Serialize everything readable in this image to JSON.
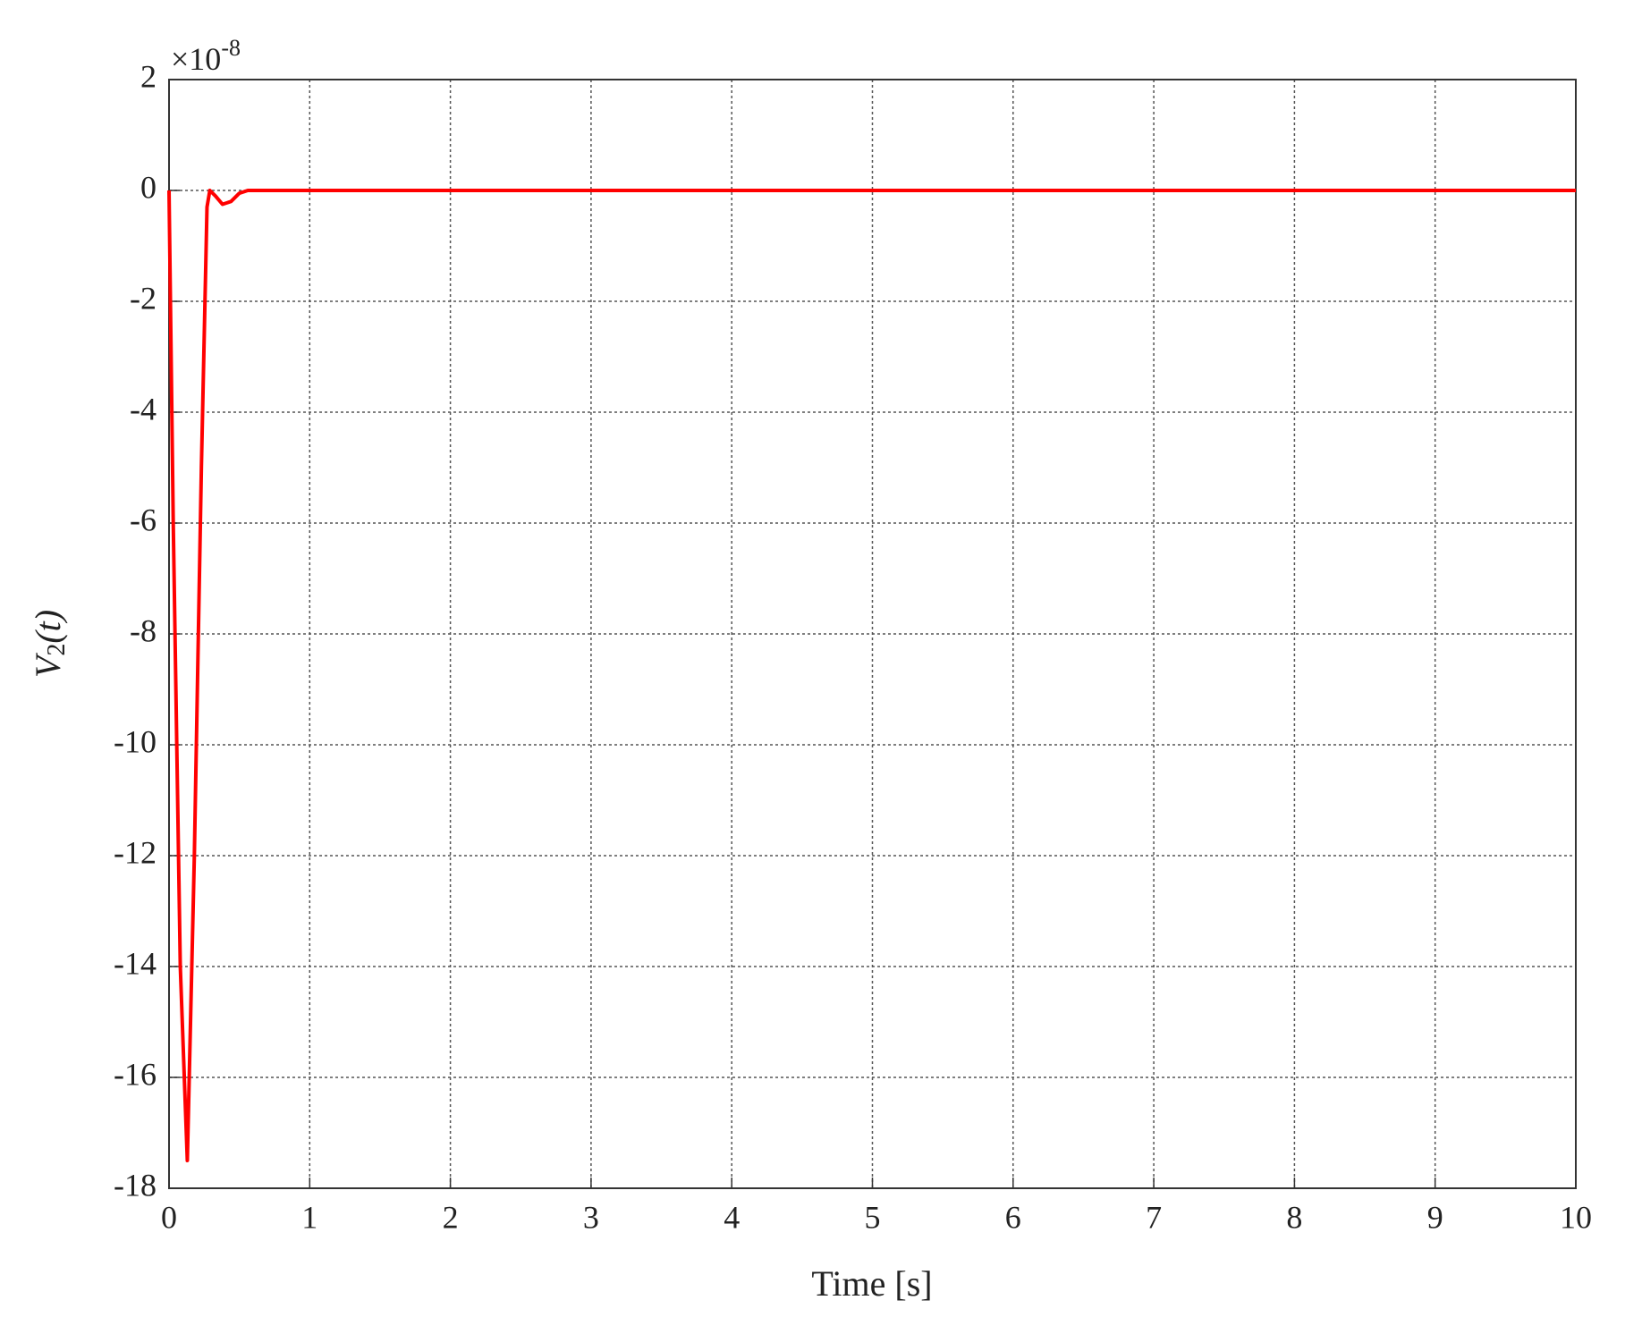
{
  "chart_data": {
    "type": "line",
    "xlabel": "Time [s]",
    "ylabel": [
      "V",
      "2",
      "(t)"
    ],
    "y_multiplier": [
      "×10",
      "-8"
    ],
    "x": [
      0,
      0.03,
      0.08,
      0.13,
      0.18,
      0.23,
      0.27,
      0.29,
      0.33,
      0.38,
      0.44,
      0.5,
      0.56,
      1,
      10
    ],
    "values": [
      0,
      -6,
      -14,
      -17.5,
      -12,
      -5,
      -0.3,
      0,
      -0.1,
      -0.25,
      -0.2,
      -0.05,
      0,
      0,
      0
    ],
    "color": "#ff0000",
    "xlim": [
      0,
      10
    ],
    "xticks": [
      0,
      1,
      2,
      3,
      4,
      5,
      6,
      7,
      8,
      9,
      10
    ],
    "ylim": [
      -18,
      2
    ],
    "yticks": [
      2,
      0,
      -2,
      -4,
      -6,
      -8,
      -10,
      -12,
      -14,
      -16,
      -18
    ],
    "grid": true
  }
}
